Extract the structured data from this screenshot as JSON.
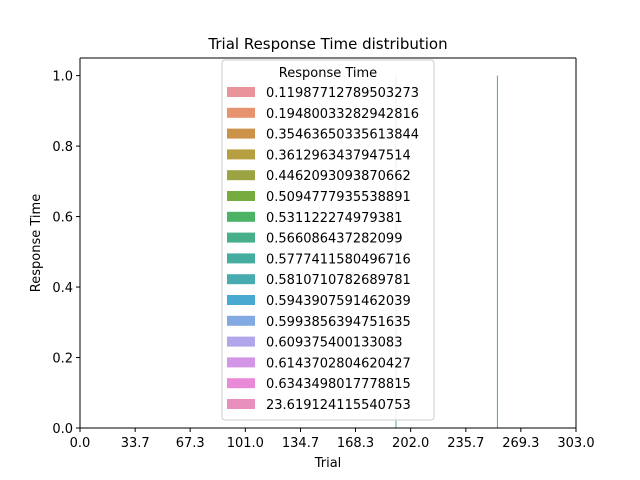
{
  "chart_data": {
    "type": "bar",
    "title": "Trial Response Time distribution",
    "xlabel": "Trial",
    "ylabel": "Response Time",
    "xlim": [
      0,
      303
    ],
    "ylim": [
      0,
      1.05
    ],
    "x_ticks": [
      "0.0",
      "33.7",
      "67.3",
      "101.0",
      "134.7",
      "168.3",
      "202.0",
      "235.7",
      "269.3",
      "303.0"
    ],
    "y_ticks": [
      "0.0",
      "0.2",
      "0.4",
      "0.6",
      "0.8",
      "1.0"
    ],
    "grid": false,
    "legend_title": "Response Time",
    "legend_position": "top-center",
    "series": [
      {
        "name": "0.11987712789503273",
        "color": "#e8949a"
      },
      {
        "name": "0.19480033282942816",
        "color": "#e8936f"
      },
      {
        "name": "0.35463650335613844",
        "color": "#cd9249"
      },
      {
        "name": "0.3612963437947514",
        "color": "#b59f40"
      },
      {
        "name": "0.4462093093870662",
        "color": "#9ba342"
      },
      {
        "name": "0.5094777935538891",
        "color": "#75ab3f"
      },
      {
        "name": "0.531122274979381",
        "color": "#4cb266"
      },
      {
        "name": "0.566086437282099",
        "color": "#47b08a"
      },
      {
        "name": "0.5777411580496716",
        "color": "#44ad9f"
      },
      {
        "name": "0.5810710782689781",
        "color": "#48abb0"
      },
      {
        "name": "0.5943907591462039",
        "color": "#4aa9d1"
      },
      {
        "name": "0.5993856394751635",
        "color": "#83a9e2"
      },
      {
        "name": "0.609375400133083",
        "color": "#b1a6ea"
      },
      {
        "name": "0.6143702804620427",
        "color": "#d395e6"
      },
      {
        "name": "0.6343498017778815",
        "color": "#e88ad8"
      },
      {
        "name": "23.619124115540753",
        "color": "#e88fbe"
      }
    ],
    "bars": [
      {
        "x": 193,
        "y": 1.0,
        "color": "#48abb0"
      },
      {
        "x": 255,
        "y": 1.0,
        "color": "#44ad9f"
      }
    ]
  }
}
